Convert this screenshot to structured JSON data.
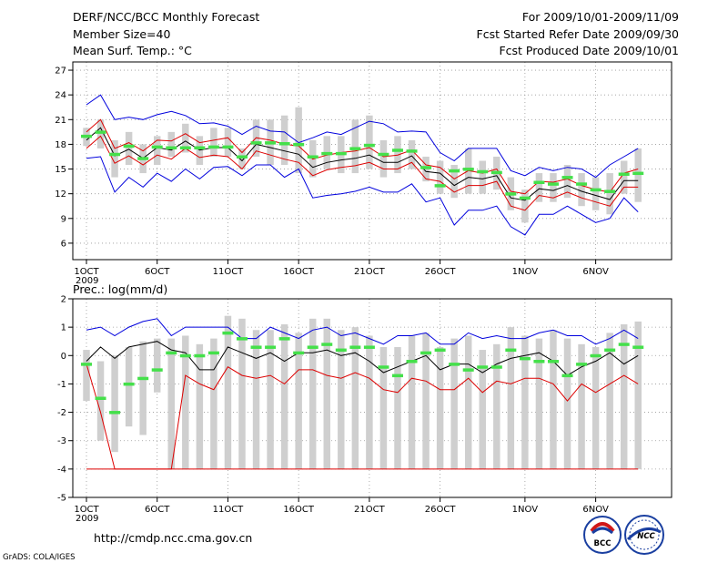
{
  "header": {
    "title": "DERF/NCC/BCC Monthly Forecast",
    "member_size": "Member Size=40",
    "variable": "Mean Surf. Temp.: °C",
    "period": "For 2009/10/01-2009/11/09",
    "started": "Fcst Started Refer Date 2009/09/30",
    "produced": "Fcst Produced Date 2009/10/01"
  },
  "footer": {
    "url": "http://cmdp.ncc.cma.gov.cn",
    "credit": "GrADS: COLA/IGES",
    "logo_bcc": "BCC",
    "logo_ncc": "NCC"
  },
  "chart_data": [
    {
      "type": "line",
      "title": "Mean Surf. Temp.: °C",
      "xlabel": "Date (2009/10/01 - 2009/11/09)",
      "x_tick_labels": [
        "1OCT",
        "6OCT",
        "11OCT",
        "16OCT",
        "21OCT",
        "26OCT",
        "1NOV",
        "6NOV"
      ],
      "x_tick_days": [
        1,
        6,
        11,
        16,
        21,
        26,
        32,
        37
      ],
      "x_year_label": "2009",
      "ylim": [
        4,
        28
      ],
      "y_ticks": [
        6,
        9,
        12,
        15,
        18,
        21,
        24,
        27
      ],
      "days": [
        1,
        2,
        3,
        4,
        5,
        6,
        7,
        8,
        9,
        10,
        11,
        12,
        13,
        14,
        15,
        16,
        17,
        18,
        19,
        20,
        21,
        22,
        23,
        24,
        25,
        26,
        27,
        28,
        29,
        30,
        31,
        32,
        33,
        34,
        35,
        36,
        37,
        38,
        39,
        40
      ],
      "series": [
        {
          "name": "max",
          "color": "#0000dd",
          "values": [
            22.8,
            24.0,
            21.0,
            21.3,
            21.0,
            21.6,
            22.0,
            21.5,
            20.5,
            20.6,
            20.2,
            19.2,
            20.2,
            19.6,
            19.5,
            18.2,
            18.8,
            19.5,
            19.2,
            20.0,
            20.8,
            20.5,
            19.5,
            19.6,
            19.5,
            17.0,
            16.0,
            17.5,
            17.5,
            17.5,
            14.8,
            14.2,
            15.2,
            14.8,
            15.2,
            15.0,
            14.0,
            15.5,
            16.5,
            17.5
          ]
        },
        {
          "name": "upper",
          "color": "#dd0000",
          "values": [
            19.5,
            21.0,
            17.5,
            18.2,
            17.2,
            18.5,
            18.4,
            19.3,
            18.2,
            18.5,
            18.8,
            17.0,
            18.8,
            18.5,
            18.0,
            17.8,
            16.2,
            16.7,
            17.0,
            17.2,
            17.6,
            16.5,
            16.7,
            17.3,
            15.5,
            15.2,
            13.8,
            14.8,
            14.5,
            15.0,
            12.3,
            12.0,
            13.5,
            13.4,
            13.8,
            13.0,
            12.5,
            12.2,
            14.5,
            15.0
          ]
        },
        {
          "name": "mean",
          "color": "#000000",
          "values": [
            18.5,
            20.0,
            16.6,
            17.4,
            16.3,
            17.6,
            17.3,
            18.4,
            17.3,
            17.6,
            17.6,
            16.0,
            18.0,
            17.6,
            17.2,
            16.8,
            15.2,
            15.8,
            16.1,
            16.3,
            16.7,
            15.8,
            15.8,
            16.6,
            14.7,
            14.5,
            13.0,
            14.0,
            13.8,
            14.2,
            11.5,
            11.2,
            12.6,
            12.4,
            13.0,
            12.3,
            11.8,
            11.3,
            13.6,
            13.6
          ]
        },
        {
          "name": "lower",
          "color": "#dd0000",
          "values": [
            17.5,
            19.0,
            15.7,
            16.6,
            15.5,
            16.7,
            16.2,
            17.5,
            16.4,
            16.7,
            16.5,
            15.0,
            17.2,
            16.7,
            16.2,
            15.8,
            14.2,
            14.9,
            15.2,
            15.4,
            15.8,
            15.0,
            15.0,
            15.8,
            13.8,
            13.5,
            12.2,
            13.0,
            13.0,
            13.5,
            10.5,
            10.0,
            11.8,
            11.5,
            12.2,
            11.5,
            11.0,
            10.5,
            12.8,
            12.8
          ]
        },
        {
          "name": "min",
          "color": "#0000dd",
          "values": [
            16.3,
            16.5,
            12.2,
            14.0,
            12.8,
            14.5,
            13.5,
            15.0,
            13.8,
            15.2,
            15.3,
            14.2,
            15.5,
            15.5,
            14.0,
            15.0,
            11.5,
            11.8,
            12.0,
            12.3,
            12.8,
            12.2,
            12.2,
            13.2,
            11.0,
            11.5,
            8.2,
            10.0,
            10.0,
            10.5,
            8.0,
            7.0,
            9.5,
            9.5,
            10.5,
            9.5,
            8.5,
            9.0,
            11.5,
            9.8
          ]
        }
      ],
      "box_lo": [
        17.8,
        17.5,
        14.0,
        15.5,
        14.5,
        15.5,
        16.5,
        17.0,
        15.5,
        16.5,
        16.5,
        15.0,
        16.5,
        15.5,
        15.5,
        14.5,
        14.0,
        15.0,
        14.5,
        14.5,
        15.0,
        14.0,
        14.5,
        15.0,
        13.5,
        12.0,
        11.5,
        12.0,
        12.0,
        12.5,
        10.0,
        8.5,
        11.0,
        11.0,
        11.5,
        10.5,
        10.0,
        9.5,
        12.0,
        11.0
      ],
      "box_hi": [
        20.0,
        21.0,
        18.5,
        19.5,
        18.0,
        19.0,
        19.5,
        20.5,
        19.0,
        20.0,
        20.0,
        17.5,
        21.0,
        21.0,
        21.5,
        22.5,
        18.5,
        19.0,
        19.0,
        21.0,
        21.5,
        18.5,
        19.0,
        18.5,
        16.5,
        16.0,
        15.5,
        17.5,
        16.0,
        16.5,
        14.0,
        12.5,
        14.5,
        14.5,
        15.5,
        14.5,
        14.0,
        14.5,
        16.0,
        17.5
      ],
      "observed": [
        19.0,
        19.5,
        16.8,
        17.8,
        16.3,
        17.7,
        17.6,
        17.6,
        17.6,
        17.7,
        17.7,
        16.5,
        18.2,
        18.2,
        18.1,
        18.0,
        16.5,
        16.9,
        16.9,
        17.5,
        17.9,
        16.8,
        17.3,
        17.2,
        15.2,
        13.0,
        14.8,
        15.0,
        14.7,
        14.6,
        12.0,
        11.5,
        13.4,
        13.2,
        14.0,
        13.2,
        12.5,
        12.3,
        14.4,
        14.5
      ],
      "grid": true
    },
    {
      "type": "line",
      "title": "Prec.: log(mm/d)",
      "xlabel": "Date (2009/10/01 - 2009/11/09)",
      "x_tick_labels": [
        "1OCT",
        "6OCT",
        "11OCT",
        "16OCT",
        "21OCT",
        "26OCT",
        "1NOV",
        "6NOV"
      ],
      "x_tick_days": [
        1,
        6,
        11,
        16,
        21,
        26,
        32,
        37
      ],
      "x_year_label": "2009",
      "ylim": [
        -5,
        2
      ],
      "y_ticks": [
        -5,
        -4,
        -3,
        -2,
        -1,
        0,
        1,
        2
      ],
      "days": [
        1,
        2,
        3,
        4,
        5,
        6,
        7,
        8,
        9,
        10,
        11,
        12,
        13,
        14,
        15,
        16,
        17,
        18,
        19,
        20,
        21,
        22,
        23,
        24,
        25,
        26,
        27,
        28,
        29,
        30,
        31,
        32,
        33,
        34,
        35,
        36,
        37,
        38,
        39,
        40
      ],
      "series": [
        {
          "name": "max",
          "color": "#0000dd",
          "values": [
            0.9,
            1.0,
            0.7,
            1.0,
            1.2,
            1.3,
            0.7,
            1.0,
            1.0,
            1.0,
            1.0,
            0.6,
            0.6,
            1.0,
            0.8,
            0.6,
            0.9,
            1.0,
            0.7,
            0.8,
            0.6,
            0.4,
            0.7,
            0.7,
            0.8,
            0.4,
            0.4,
            0.8,
            0.6,
            0.7,
            0.6,
            0.6,
            0.8,
            0.9,
            0.7,
            0.7,
            0.4,
            0.6,
            0.9,
            0.6
          ]
        },
        {
          "name": "mean",
          "color": "#000000",
          "values": [
            -0.2,
            0.3,
            -0.1,
            0.3,
            0.4,
            0.5,
            0.2,
            0.1,
            -0.5,
            -0.5,
            0.3,
            0.1,
            -0.1,
            0.1,
            -0.2,
            0.1,
            0.1,
            0.2,
            0.0,
            0.1,
            -0.2,
            -0.6,
            -0.4,
            -0.2,
            0.0,
            -0.5,
            -0.3,
            -0.3,
            -0.6,
            -0.3,
            -0.1,
            0.0,
            0.1,
            -0.2,
            -0.7,
            -0.4,
            -0.2,
            0.1,
            -0.3,
            0.0
          ]
        },
        {
          "name": "lower",
          "color": "#dd0000",
          "values": [
            -0.3,
            -2.0,
            -4.0,
            -4.0,
            -4.0,
            -4.0,
            -4.0,
            -0.7,
            -1.0,
            -1.2,
            -0.4,
            -0.7,
            -0.8,
            -0.7,
            -1.0,
            -0.5,
            -0.5,
            -0.7,
            -0.8,
            -0.6,
            -0.8,
            -1.2,
            -1.3,
            -0.8,
            -0.9,
            -1.2,
            -1.2,
            -0.8,
            -1.3,
            -0.9,
            -1.0,
            -0.8,
            -0.8,
            -1.0,
            -1.6,
            -1.0,
            -1.3,
            -1.0,
            -0.7,
            -1.0
          ]
        },
        {
          "name": "floor",
          "color": "#dd0000",
          "values": [
            -4,
            -4,
            -4,
            -4,
            -4,
            -4,
            -4,
            -4,
            -4,
            -4,
            -4,
            -4,
            -4,
            -4,
            -4,
            -4,
            -4,
            -4,
            -4,
            -4,
            -4,
            -4,
            -4,
            -4,
            -4,
            -4,
            -4,
            -4,
            -4,
            -4,
            -4,
            -4,
            -4,
            -4,
            -4,
            -4,
            -4,
            -4,
            -4,
            -4
          ]
        }
      ],
      "box_lo": [
        -1.6,
        -3.0,
        -3.4,
        -2.5,
        -2.8,
        -1.3,
        -4.0,
        -4.0,
        -4.0,
        -4.0,
        -4.0,
        -4.0,
        -4.0,
        -4.0,
        -4.0,
        -4.0,
        -4.0,
        -4.0,
        -4.0,
        -4.0,
        -4.0,
        -4.0,
        -4.0,
        -4.0,
        -4.0,
        -4.0,
        -4.0,
        -4.0,
        -4.0,
        -4.0,
        -4.0,
        -4.0,
        -4.0,
        -4.0,
        -4.0,
        -4.0,
        -4.0,
        -4.0,
        -4.0,
        -4.0
      ],
      "box_hi": [
        0.2,
        -0.2,
        0.0,
        0.3,
        0.5,
        0.6,
        0.6,
        0.7,
        0.4,
        0.6,
        1.4,
        1.3,
        0.9,
        0.9,
        1.1,
        0.8,
        1.3,
        1.3,
        0.9,
        1.0,
        0.7,
        0.3,
        0.3,
        0.7,
        0.8,
        0.3,
        0.6,
        0.7,
        0.2,
        0.4,
        1.0,
        0.7,
        0.6,
        0.9,
        0.6,
        0.4,
        0.3,
        0.8,
        1.1,
        1.2
      ],
      "observed": [
        -0.3,
        -1.5,
        -2.0,
        -1.0,
        -0.8,
        -0.5,
        0.1,
        0.0,
        0.0,
        0.1,
        0.8,
        0.6,
        0.3,
        0.3,
        0.6,
        0.1,
        0.3,
        0.4,
        0.2,
        0.3,
        0.3,
        -0.4,
        -0.7,
        -0.2,
        0.1,
        0.2,
        -0.3,
        -0.5,
        -0.4,
        -0.4,
        0.2,
        -0.1,
        -0.2,
        -0.2,
        -0.7,
        -0.3,
        0.0,
        0.2,
        0.4,
        0.3
      ],
      "grid": true
    }
  ]
}
